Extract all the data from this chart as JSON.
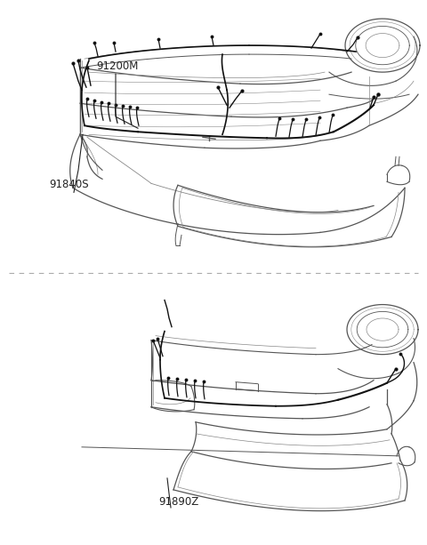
{
  "background_color": "#ffffff",
  "line_color": "#555555",
  "line_color_light": "#888888",
  "wiring_color": "#111111",
  "label_color": "#222222",
  "label_fontsize": 8.5,
  "divider_color": "#aaaaaa",
  "top_label1": "91200M",
  "top_label2": "91840S",
  "bottom_label1": "91890Z"
}
